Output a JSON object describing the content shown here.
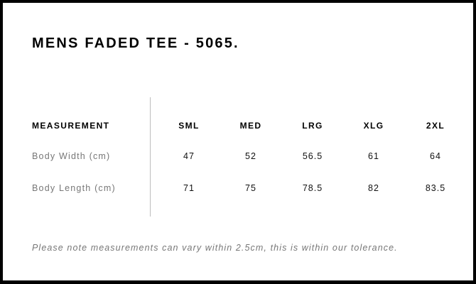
{
  "title": "MENS FADED TEE - 5065.",
  "table": {
    "header": {
      "label": "MEASUREMENT",
      "sizes": [
        "SML",
        "MED",
        "LRG",
        "XLG",
        "2XL"
      ]
    },
    "rows": [
      {
        "label": "Body Width (cm)",
        "values": [
          "47",
          "52",
          "56.5",
          "61",
          "64"
        ]
      },
      {
        "label": "Body Length (cm)",
        "values": [
          "71",
          "75",
          "78.5",
          "82",
          "83.5"
        ]
      }
    ]
  },
  "note": "Please note measurements can vary within 2.5cm, this is within our tolerance."
}
